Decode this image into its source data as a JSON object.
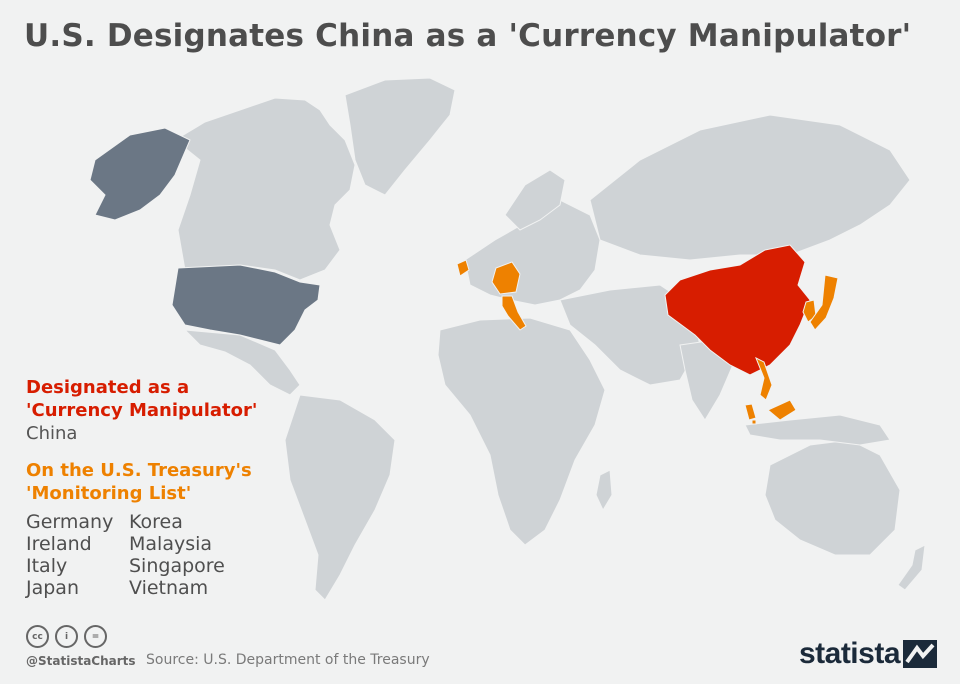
{
  "title": "U.S. Designates China as a 'Currency Manipulator'",
  "legend": {
    "designated_heading_1": "Designated as a",
    "designated_heading_2": "'Currency Manipulator'",
    "designated_country": "China",
    "monitoring_heading_1": "On the U.S. Treasury's",
    "monitoring_heading_2": "'Monitoring List'",
    "monitoring_countries": [
      "Germany",
      "Korea",
      "Ireland",
      "Malaysia",
      "Italy",
      "Singapore",
      "Japan",
      "Vietnam"
    ]
  },
  "colors": {
    "designated": "#d71d00",
    "monitoring": "#ee8100",
    "united_states": "#6b7785",
    "land": "#cfd3d6",
    "background": "#f1f2f2"
  },
  "footer": {
    "icons": [
      "cc-icon",
      "by-icon",
      "nd-icon"
    ],
    "icon_texts": [
      "cc",
      "i",
      "="
    ],
    "handle": "@StatistaCharts",
    "source": "Source: U.S. Department of the Treasury",
    "brand": "statista"
  }
}
